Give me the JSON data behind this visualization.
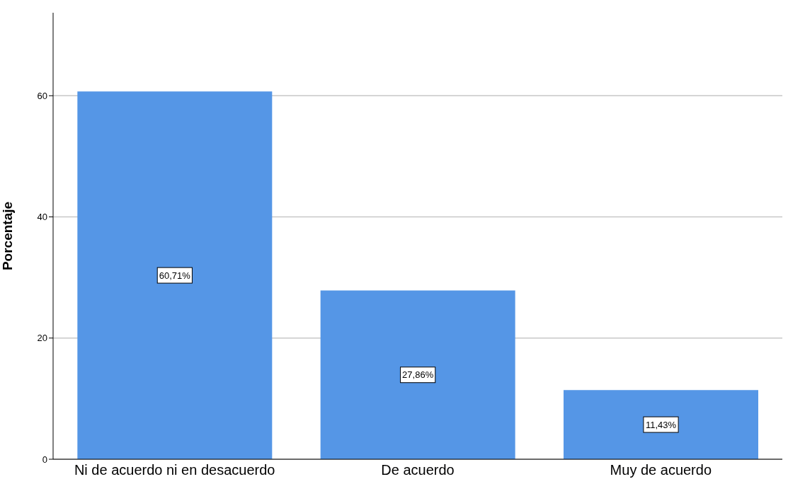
{
  "chart_data": {
    "type": "bar",
    "ylabel": "Porcentaje",
    "categories": [
      "Ni de acuerdo ni en desacuerdo",
      "De acuerdo",
      "Muy de acuerdo"
    ],
    "values": [
      60.71,
      27.86,
      11.43
    ],
    "value_labels": [
      "60,71%",
      "27,86%",
      "11,43%"
    ],
    "color": "#5596e6",
    "ylim": [
      0,
      73.7
    ],
    "yticks": [
      0,
      20,
      40,
      60
    ],
    "grid": "y"
  }
}
